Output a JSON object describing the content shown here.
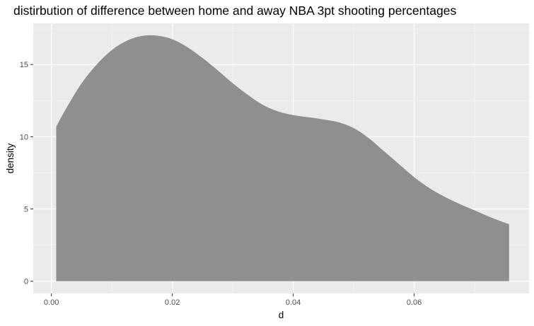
{
  "chart_data": {
    "type": "area",
    "subtype": "density",
    "title": "distirbution of difference between home and away NBA 3pt shooting percentages",
    "xlabel": "d",
    "ylabel": "density",
    "xlim": [
      -0.003,
      0.079
    ],
    "ylim": [
      -0.85,
      17.85
    ],
    "x_ticks": [
      0.0,
      0.02,
      0.04,
      0.06
    ],
    "x_tick_labels": [
      "0.00",
      "0.02",
      "0.04",
      "0.06"
    ],
    "y_ticks": [
      0,
      5,
      10,
      15
    ],
    "y_tick_labels": [
      "0",
      "5",
      "10",
      "15"
    ],
    "grid": true,
    "fill_color": "#8f8f8f",
    "panel_background": "#ebebeb",
    "x": [
      0.0008,
      0.0025,
      0.005,
      0.0075,
      0.01,
      0.0125,
      0.015,
      0.0175,
      0.02,
      0.0225,
      0.025,
      0.0275,
      0.03,
      0.0325,
      0.035,
      0.0375,
      0.04,
      0.0425,
      0.045,
      0.0475,
      0.05,
      0.0525,
      0.055,
      0.0575,
      0.06,
      0.0625,
      0.065,
      0.0675,
      0.07,
      0.0725,
      0.075,
      0.0757
    ],
    "y": [
      10.7,
      12.0,
      13.7,
      15.0,
      16.0,
      16.65,
      16.98,
      17.0,
      16.75,
      16.2,
      15.45,
      14.6,
      13.7,
      12.9,
      12.2,
      11.75,
      11.5,
      11.35,
      11.2,
      11.0,
      10.6,
      9.9,
      9.0,
      8.1,
      7.2,
      6.45,
      5.85,
      5.35,
      4.9,
      4.45,
      4.05,
      3.95
    ]
  }
}
